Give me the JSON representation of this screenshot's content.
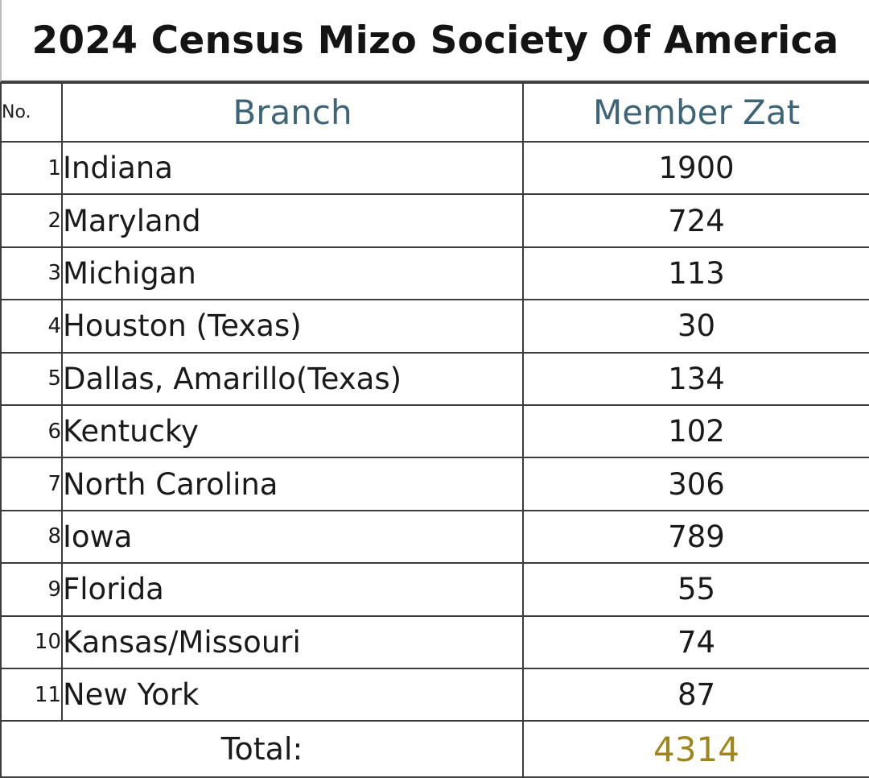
{
  "title": "2024 Census Mizo Society Of America",
  "headers": {
    "no": "No.",
    "branch": "Branch",
    "members": "Member Zat"
  },
  "total_label": "Total:",
  "total_value": "4314",
  "colors": {
    "header_text": "#3d6577",
    "total_value": "#a0861a",
    "total_border": "#2e7a4e"
  },
  "chart_data": {
    "type": "table",
    "title": "2024 Census Mizo Society Of America",
    "columns": [
      "No.",
      "Branch",
      "Member Zat"
    ],
    "rows": [
      {
        "no": "1",
        "branch": "Indiana",
        "members": "1900"
      },
      {
        "no": "2",
        "branch": "Maryland",
        "members": "724"
      },
      {
        "no": "3",
        "branch": "Michigan",
        "members": "113"
      },
      {
        "no": "4",
        "branch": "Houston (Texas)",
        "members": "30"
      },
      {
        "no": "5",
        "branch": "Dallas, Amarillo(Texas)",
        "members": "134"
      },
      {
        "no": "6",
        "branch": "Kentucky",
        "members": "102"
      },
      {
        "no": "7",
        "branch": "North Carolina",
        "members": "306"
      },
      {
        "no": "8",
        "branch": "Iowa",
        "members": "789"
      },
      {
        "no": "9",
        "branch": "Florida",
        "members": "55"
      },
      {
        "no": "10",
        "branch": "Kansas/Missouri",
        "members": "74"
      },
      {
        "no": "11",
        "branch": "New York",
        "members": "87"
      }
    ],
    "total": {
      "label": "Total:",
      "value": "4314"
    }
  }
}
